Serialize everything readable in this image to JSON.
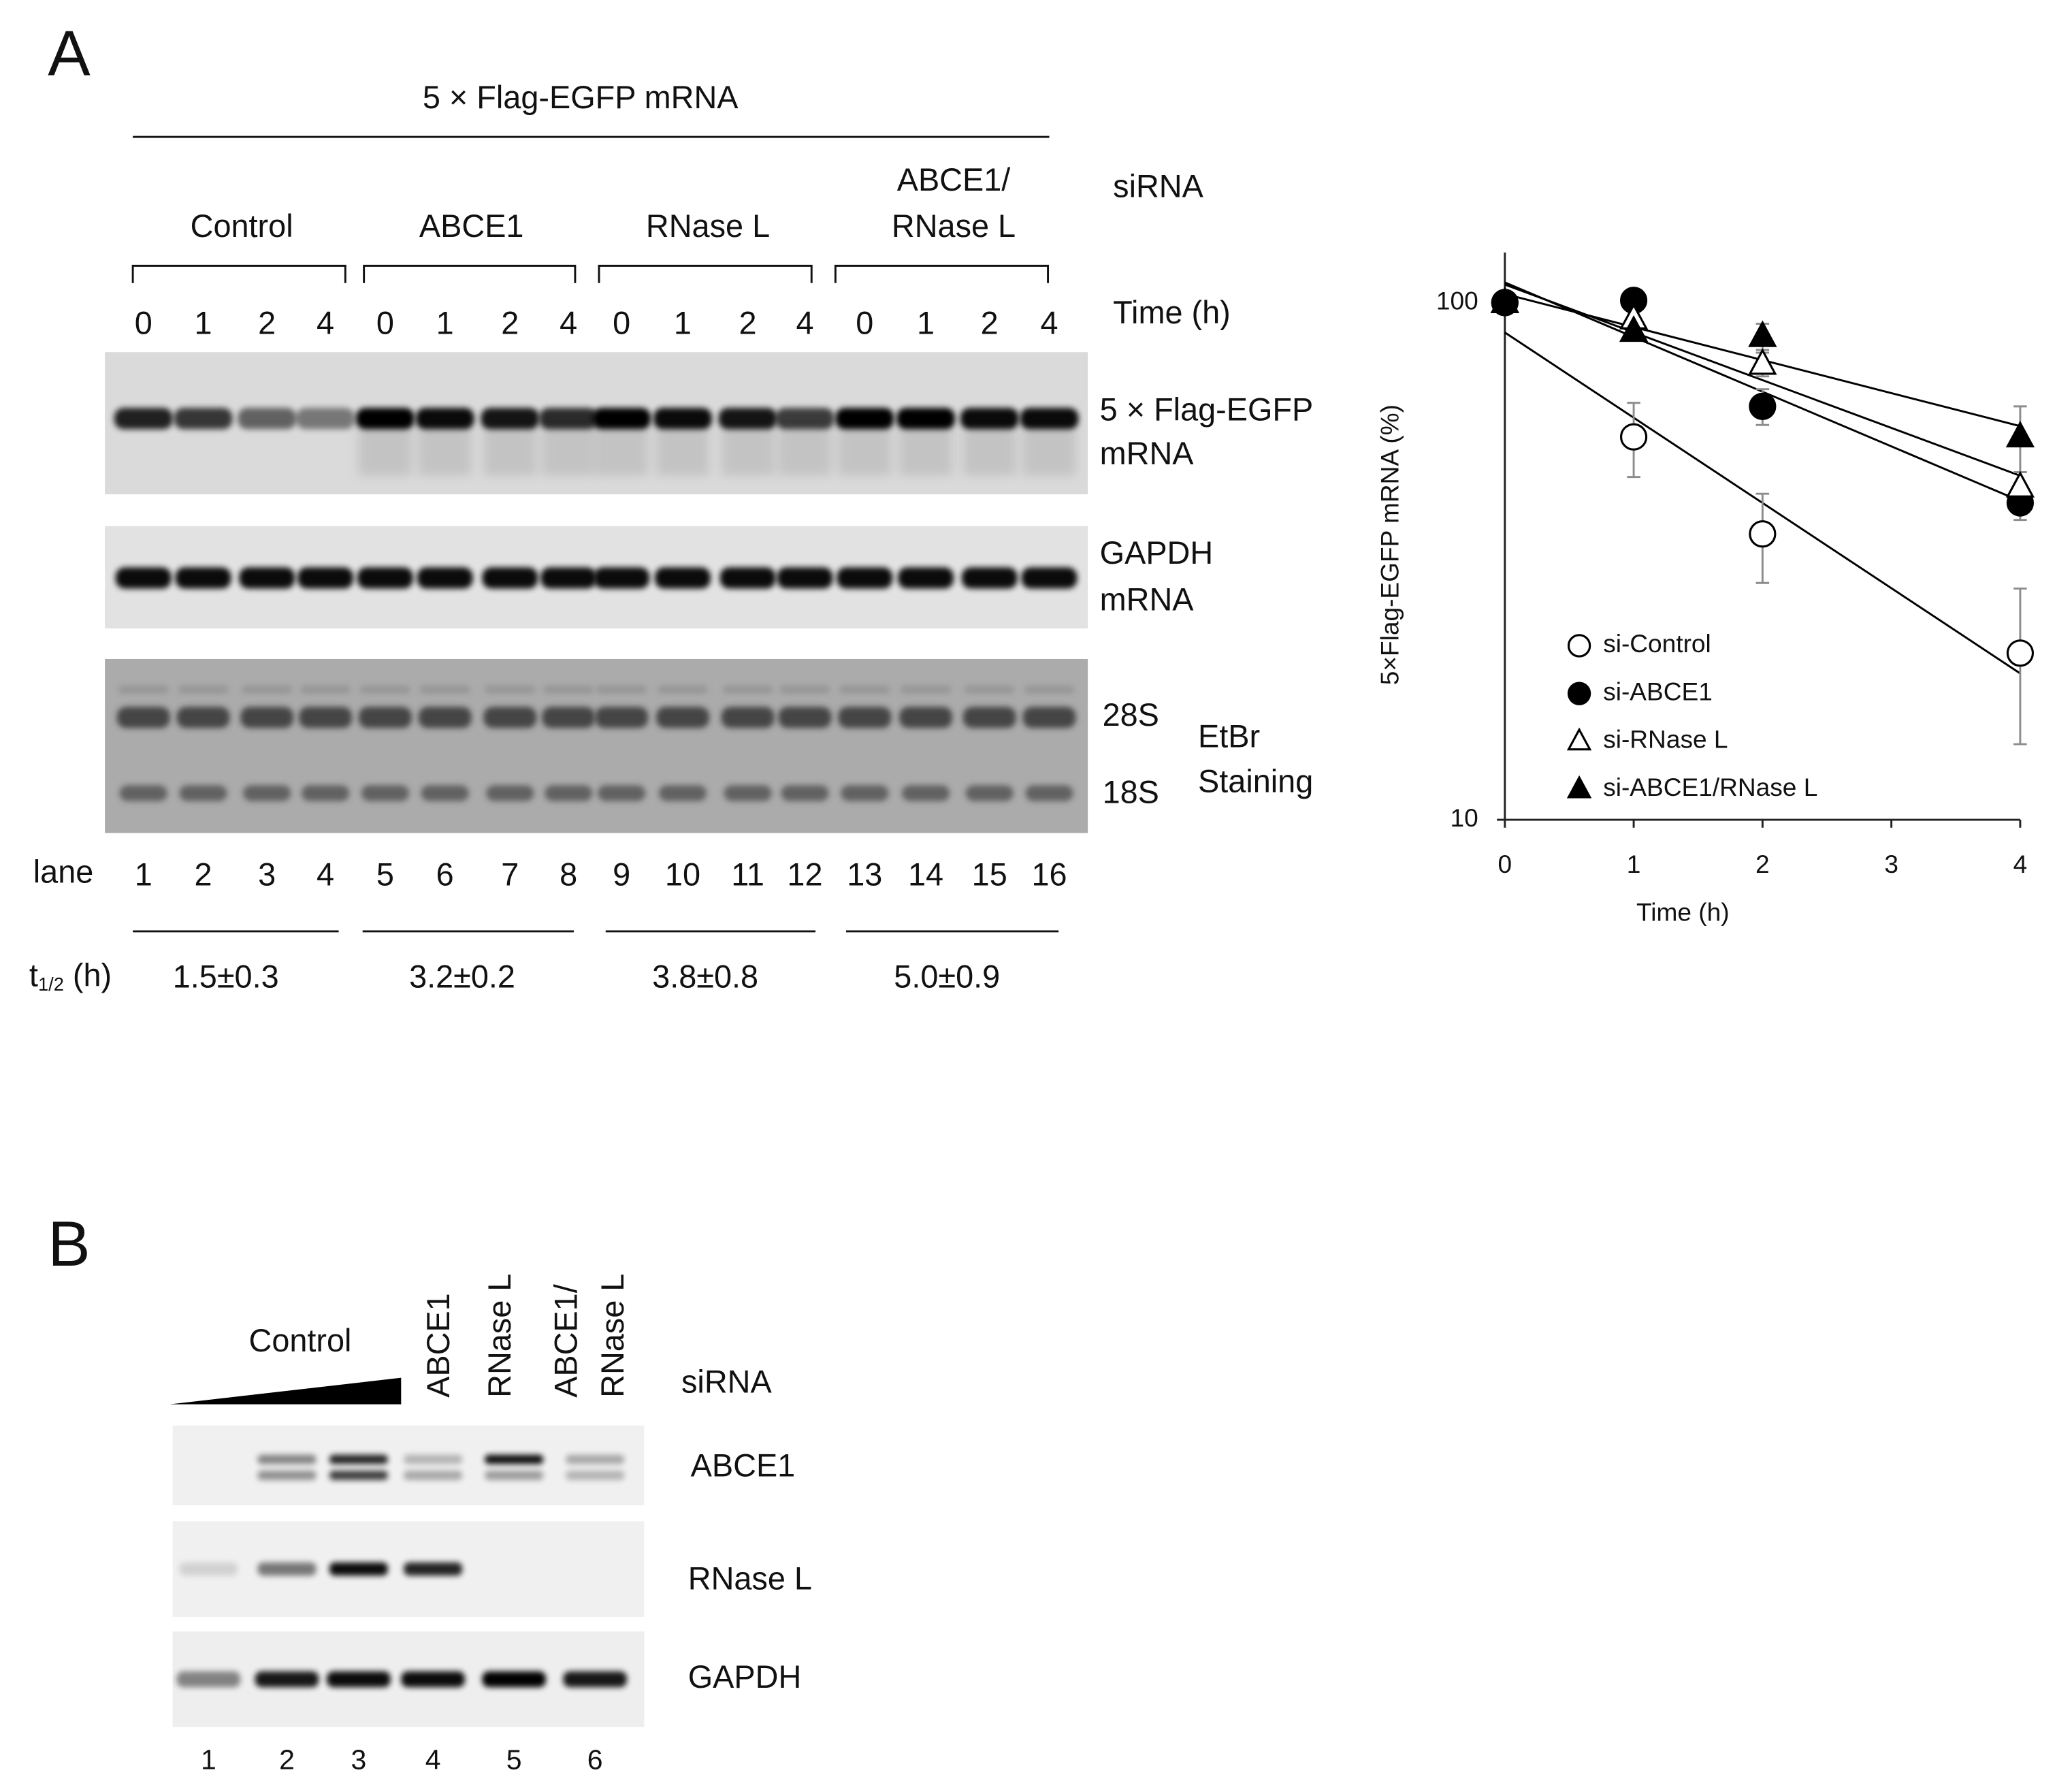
{
  "panel_a": {
    "label": "A",
    "construct": "5 × Flag-EGFP mRNA",
    "sirna_label": "siRNA",
    "time_label": "Time (h)",
    "groups": [
      {
        "label_lines": [
          "Control"
        ],
        "times": [
          "0",
          "1",
          "2",
          "4"
        ],
        "lanes": [
          "1",
          "2",
          "3",
          "4"
        ],
        "half_life": "1.5±0.3"
      },
      {
        "label_lines": [
          "ABCE1"
        ],
        "times": [
          "0",
          "1",
          "2",
          "4"
        ],
        "lanes": [
          "5",
          "6",
          "7",
          "8"
        ],
        "half_life": "3.2±0.2"
      },
      {
        "label_lines": [
          "RNase L"
        ],
        "times": [
          "0",
          "1",
          "2",
          "4"
        ],
        "lanes": [
          "9",
          "10",
          "11",
          "12"
        ],
        "half_life": "3.8±0.8"
      },
      {
        "label_lines": [
          "ABCE1/",
          "RNase L"
        ],
        "times": [
          "0",
          "1",
          "2",
          "4"
        ],
        "lanes": [
          "13",
          "14",
          "15",
          "16"
        ],
        "half_life": "5.0±0.9"
      }
    ],
    "blots": [
      {
        "lines": [
          "5 × Flag-EGFP",
          "mRNA"
        ]
      },
      {
        "lines": [
          "GAPDH",
          "mRNA"
        ]
      },
      {
        "lines": [
          "28S",
          "18S"
        ]
      }
    ],
    "stain_lines": [
      "EtBr",
      "Staining"
    ],
    "lane_label": "lane",
    "half_life_label": {
      "main": "t",
      "sub": "1/2",
      "unit": " (h)"
    }
  },
  "chart_data": {
    "type": "line",
    "xlabel": "Time (h)",
    "ylabel": "5×Flag-EGFP mRNA (%)",
    "x": [
      0,
      1,
      2,
      4
    ],
    "xlim": [
      0,
      4
    ],
    "xticks": [
      0,
      1,
      2,
      3,
      4
    ],
    "ylim": [
      10,
      125
    ],
    "yticks": [
      10,
      100
    ],
    "log_y": true,
    "legend": "lower left",
    "error_color": "#8c8c8c",
    "series": [
      {
        "name": "si-Control",
        "color": "#000000",
        "marker": "circle",
        "filled": false,
        "values": [
          100,
          55,
          35.7,
          21
        ],
        "errors": [
          2,
          9,
          7,
          7
        ]
      },
      {
        "name": "si-ABCE1",
        "color": "#000000",
        "marker": "circle",
        "filled": true,
        "values": [
          100,
          101,
          63,
          41
        ],
        "errors": [
          2,
          5,
          5,
          3
        ]
      },
      {
        "name": "si-RNase L",
        "color": "#000000",
        "marker": "triangle",
        "filled": false,
        "values": [
          100,
          93,
          76,
          44
        ],
        "errors": [
          2,
          4,
          4,
          3
        ]
      },
      {
        "name": "si-ABCE1/RNase L",
        "color": "#000000",
        "marker": "triangle",
        "filled": true,
        "values": [
          100,
          88,
          86,
          55
        ],
        "errors": [
          2,
          3,
          5,
          8
        ]
      }
    ]
  },
  "panel_b": {
    "label": "B",
    "control_label": "Control",
    "sirna_columns": [
      {
        "lines": [
          "ABCE1"
        ]
      },
      {
        "lines": [
          "RNase L"
        ]
      },
      {
        "lines": [
          "ABCE1/",
          "RNase L"
        ]
      }
    ],
    "sirna_label": "siRNA",
    "blots": [
      "ABCE1",
      "RNase L",
      "GAPDH"
    ],
    "lanes": [
      "1",
      "2",
      "3",
      "4",
      "5",
      "6"
    ]
  }
}
